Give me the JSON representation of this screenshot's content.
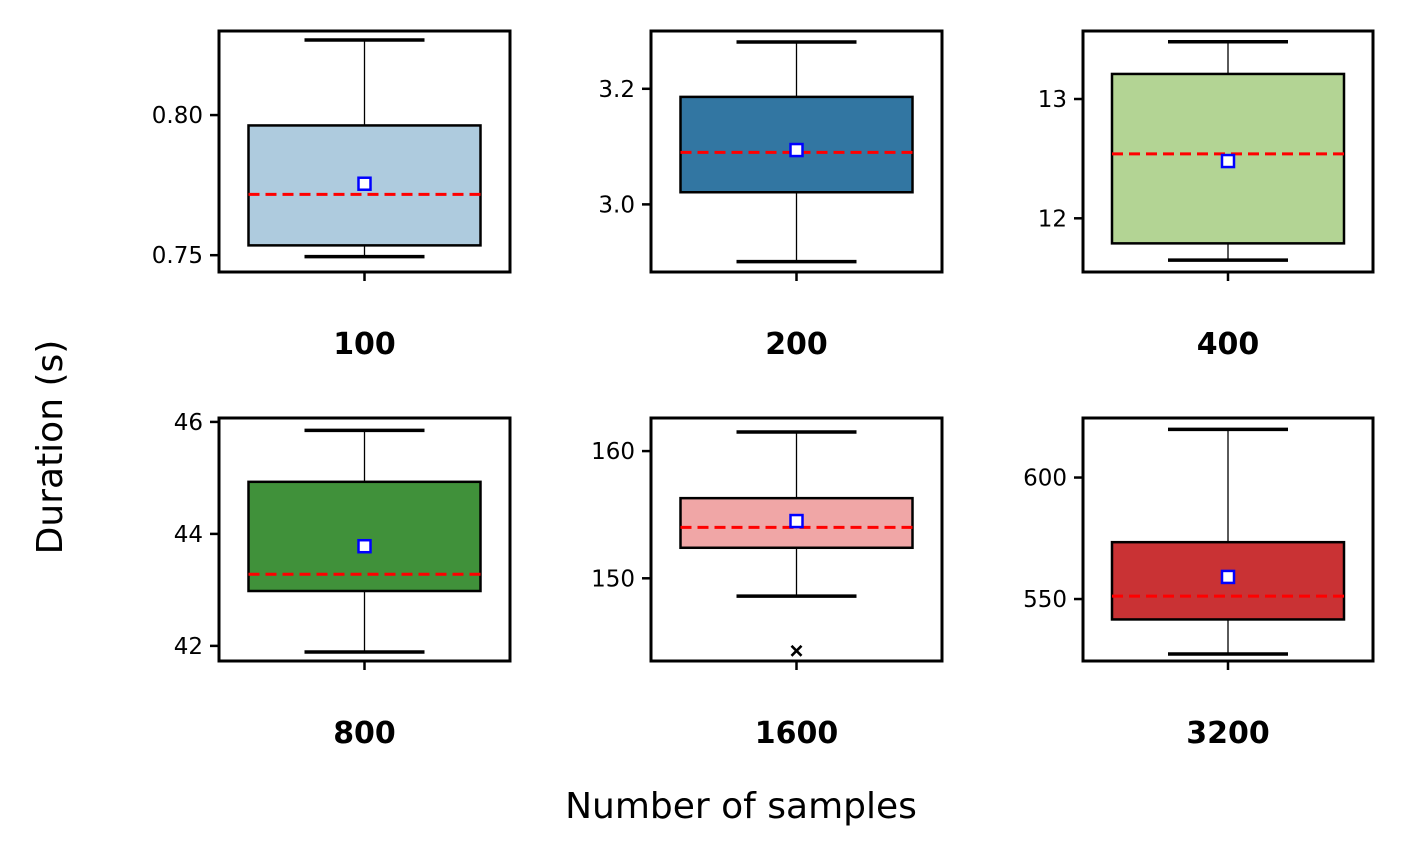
{
  "chart_data": {
    "type": "box",
    "xlabel": "Number of samples",
    "ylabel": "Duration (s)",
    "legend": "none",
    "grid": false,
    "median_style": "red dashed line",
    "mean_style": "blue hollow square",
    "colors": {
      "frame": "#000000",
      "median": "#ff0000",
      "mean": "#0000ff"
    },
    "panels": [
      {
        "label": "100",
        "color": "#aecbde",
        "ylim": [
          0.744,
          0.83
        ],
        "yticks": [
          0.75,
          0.8
        ],
        "ytick_labels": [
          "0.75",
          "0.80"
        ],
        "whisker_low": 0.7495,
        "q1": 0.7535,
        "median": 0.7717,
        "mean": 0.7755,
        "q3": 0.7963,
        "whisker_high": 0.8268,
        "outliers": []
      },
      {
        "label": "200",
        "color": "#3276a2",
        "ylim": [
          2.883,
          3.3
        ],
        "yticks": [
          3.0,
          3.2
        ],
        "ytick_labels": [
          "3.0",
          "3.2"
        ],
        "whisker_low": 2.901,
        "q1": 3.021,
        "median": 3.09,
        "mean": 3.094,
        "q3": 3.186,
        "whisker_high": 3.281,
        "outliers": []
      },
      {
        "label": "400",
        "color": "#b3d494",
        "ylim": [
          11.55,
          13.57
        ],
        "yticks": [
          12,
          13
        ],
        "ytick_labels": [
          "12",
          "13"
        ],
        "whisker_low": 11.65,
        "q1": 11.79,
        "median": 12.54,
        "mean": 12.48,
        "q3": 13.21,
        "whisker_high": 13.48,
        "outliers": []
      },
      {
        "label": "800",
        "color": "#40913a",
        "ylim": [
          41.73,
          46.07
        ],
        "yticks": [
          42,
          44,
          46
        ],
        "ytick_labels": [
          "42",
          "44",
          "46"
        ],
        "whisker_low": 41.89,
        "q1": 42.98,
        "median": 43.28,
        "mean": 43.78,
        "q3": 44.93,
        "whisker_high": 45.85,
        "outliers": []
      },
      {
        "label": "1600",
        "color": "#f0a6a6",
        "ylim": [
          143.5,
          162.6
        ],
        "yticks": [
          150,
          160
        ],
        "ytick_labels": [
          "150",
          "160"
        ],
        "whisker_low": 148.6,
        "q1": 152.4,
        "median": 154.0,
        "mean": 154.5,
        "q3": 156.3,
        "whisker_high": 161.5,
        "outliers": [
          144.3
        ]
      },
      {
        "label": "3200",
        "color": "#c93234",
        "ylim": [
          524.5,
          624.5
        ],
        "yticks": [
          550,
          600
        ],
        "ytick_labels": [
          "550",
          "600"
        ],
        "whisker_low": 527.4,
        "q1": 541.6,
        "median": 551.2,
        "mean": 559.1,
        "q3": 573.4,
        "whisker_high": 619.8,
        "outliers": []
      }
    ]
  }
}
